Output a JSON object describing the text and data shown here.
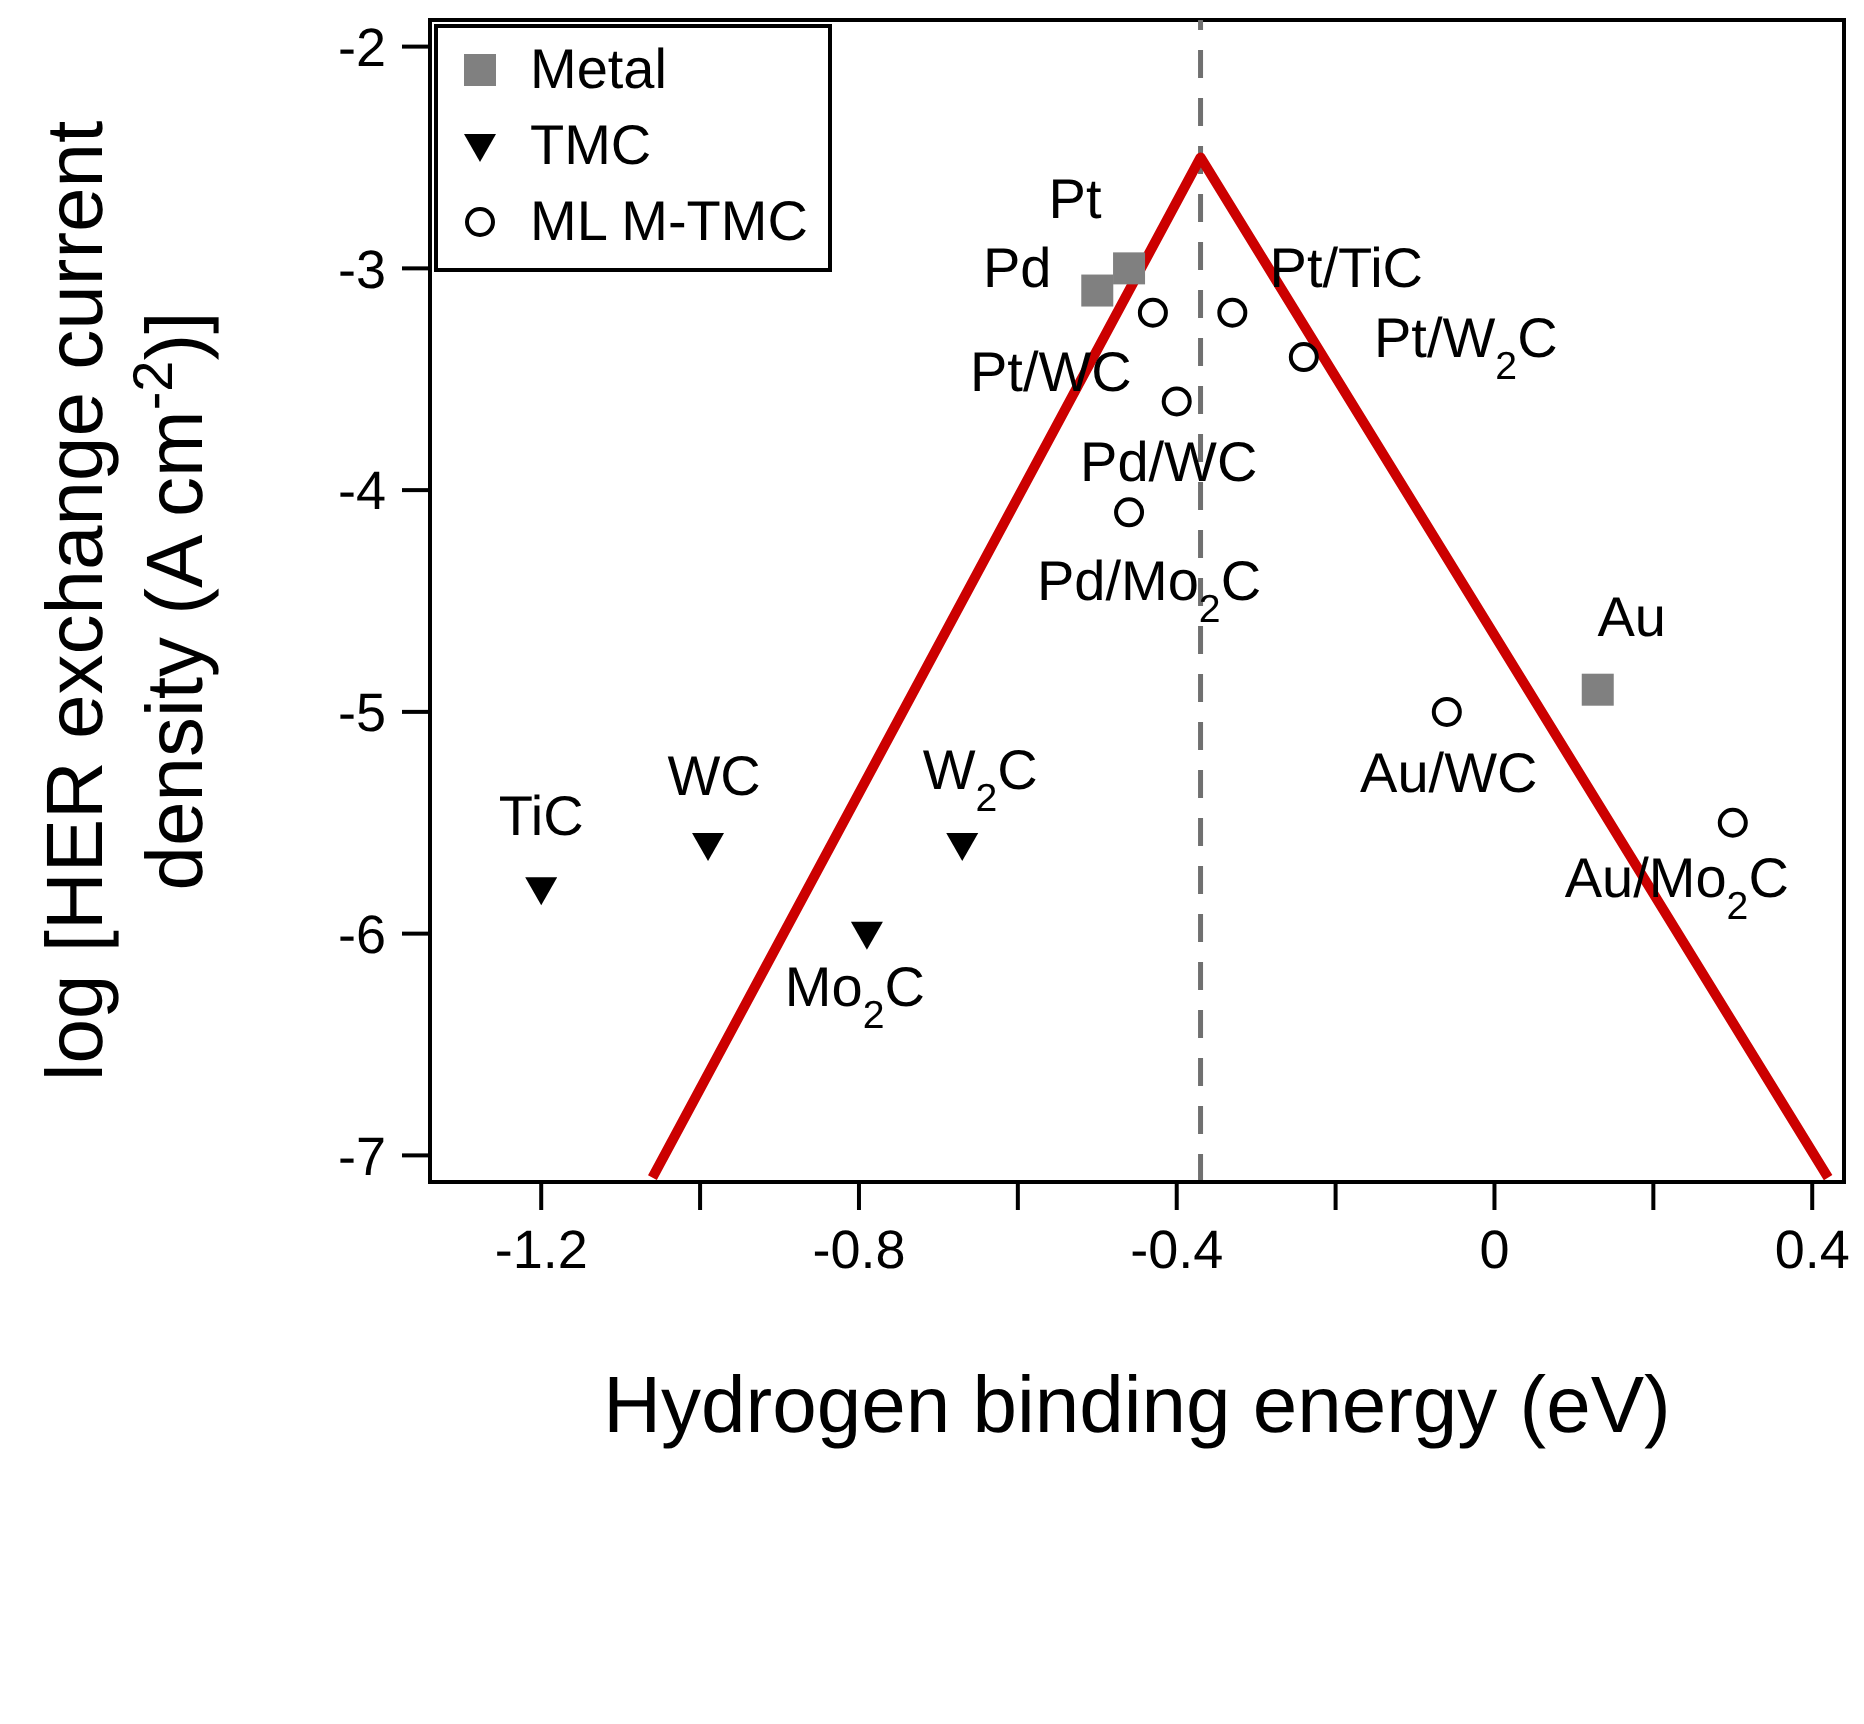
{
  "chart_data": {
    "type": "scatter",
    "xlabel": "Hydrogen binding energy (eV)",
    "ylabel": "log [HER exchange current density (A cm$^{-2}$)]",
    "xlim": [
      -1.34,
      0.44
    ],
    "ylim": [
      -7.12,
      -1.88
    ],
    "xticks": [
      -1.2,
      {
        "value": -1.0,
        "label": null
      },
      -0.8,
      {
        "value": -0.6,
        "label": null
      },
      -0.4,
      {
        "value": -0.2,
        "label": null
      },
      0,
      {
        "value": 0.2,
        "label": null
      },
      0.4
    ],
    "yticks": [
      -7,
      -6,
      -5,
      -4,
      -3,
      -2
    ],
    "legend": "top left",
    "series": [
      {
        "name": "Metal",
        "color": "#808080",
        "marker": "square",
        "x": [
          -0.46,
          -0.5,
          0.13
        ],
        "values": [
          -3.0,
          -3.1,
          -4.9
        ]
      },
      {
        "name": "TMC",
        "color": "#000000",
        "marker": "triangle",
        "x": [
          -1.2,
          -0.99,
          -0.67,
          -0.79
        ],
        "values": [
          -5.8,
          -5.6,
          -5.6,
          -6.0
        ]
      },
      {
        "name": "ML M-TMC",
        "color": "#000000",
        "marker": "circle",
        "x": [
          -0.43,
          -0.33,
          -0.24,
          -0.4,
          -0.46,
          -0.06,
          0.3
        ],
        "values": [
          -3.2,
          -3.2,
          -3.4,
          -3.6,
          -4.1,
          -5.0,
          -5.5
        ]
      },
      {
        "type": "line",
        "color": "#cc0000",
        "marker": "none",
        "x": [
          -1.06,
          -0.37,
          0.42
        ],
        "values": [
          -7.1,
          -2.5,
          -7.1
        ]
      }
    ],
    "ref_lines": [
      {
        "axis": "x",
        "value": -0.37,
        "color": "#707070",
        "line_style": "dashed"
      }
    ],
    "annotations": [
      {
        "text": "Pt",
        "x": -0.46,
        "y": -3.0
      },
      {
        "text": "Pd",
        "x": -0.5,
        "y": -3.1
      },
      {
        "text": "Au",
        "x": 0.13,
        "y": -4.9
      },
      {
        "text": "TiC",
        "x": -1.2,
        "y": -5.8
      },
      {
        "text": "WC",
        "x": -0.99,
        "y": -5.6
      },
      {
        "text": "W$_{2}$C",
        "x": -0.67,
        "y": -5.6
      },
      {
        "text": "Mo$_{2}$C",
        "x": -0.79,
        "y": -6.0
      },
      {
        "text": "Pt/WC",
        "x": -0.43,
        "y": -3.2
      },
      {
        "text": "Pt/TiC",
        "x": -0.33,
        "y": -3.2
      },
      {
        "text": "Pt/W$_{2}$C",
        "x": -0.24,
        "y": -3.4
      },
      {
        "text": "Pd/WC",
        "x": -0.4,
        "y": -3.6
      },
      {
        "text": "Pd/Mo$_{2}$C",
        "x": -0.46,
        "y": -4.1
      },
      {
        "text": "Au/WC",
        "x": -0.06,
        "y": -5.0
      },
      {
        "text": "Au/Mo$_{2}$C",
        "x": 0.3,
        "y": -5.5
      }
    ]
  }
}
